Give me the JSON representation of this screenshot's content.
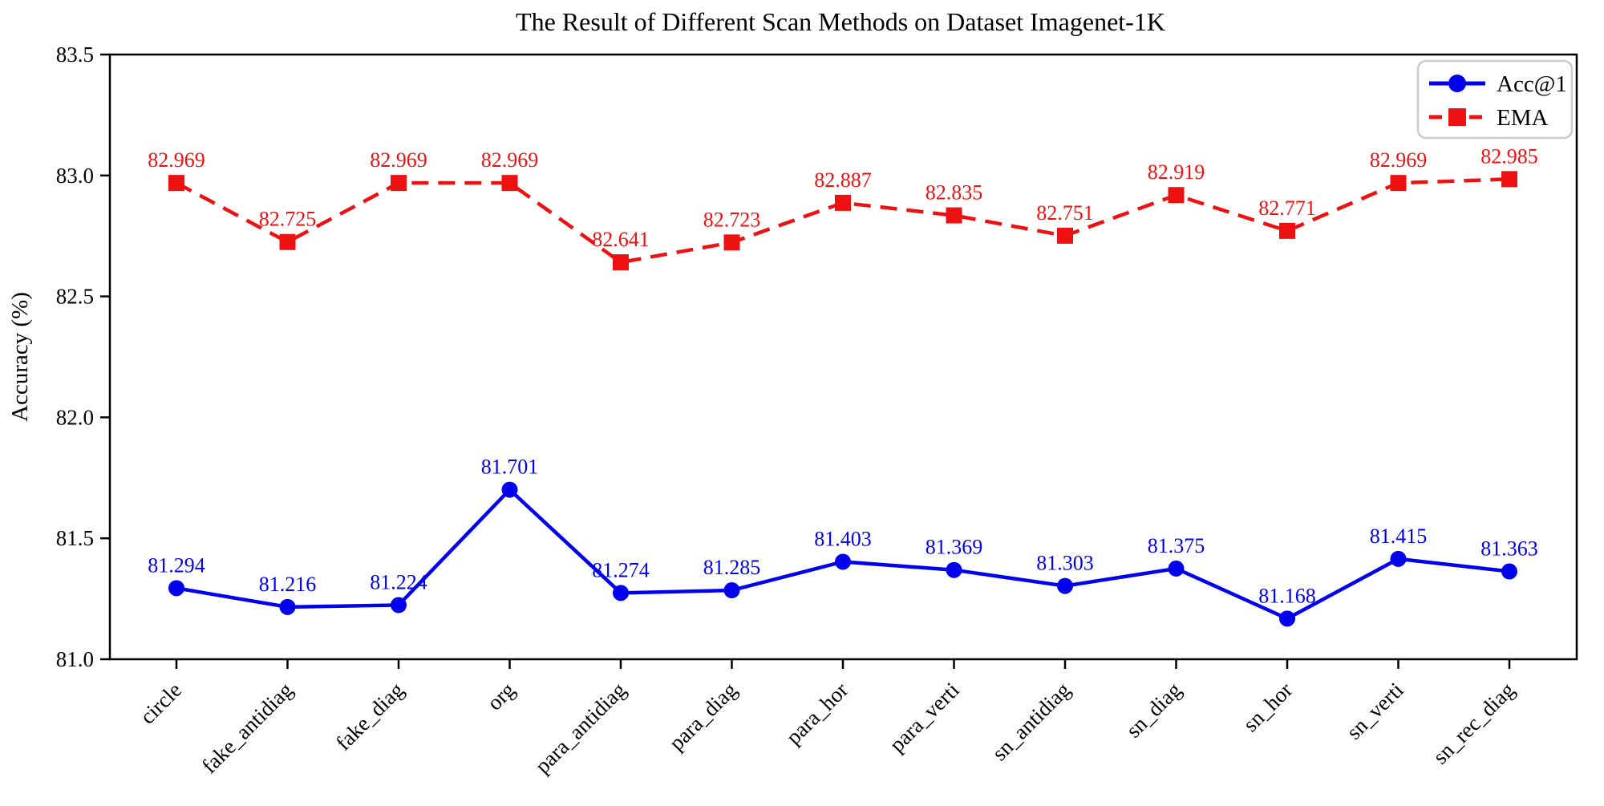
{
  "chart_data": {
    "type": "line",
    "title": "The Result of Different Scan Methods on Dataset Imagenet-1K",
    "xlabel": "",
    "ylabel": "Accuracy (%)",
    "categories": [
      "circle",
      "fake_antidiag",
      "fake_diag",
      "org",
      "para_antidiag",
      "para_diag",
      "para_hor",
      "para_verti",
      "sn_antidiag",
      "sn_diag",
      "sn_hor",
      "sn_verti",
      "sn_rec_diag"
    ],
    "series": [
      {
        "name": "Acc@1",
        "color": "#0000ee",
        "marker": "circle",
        "linestyle": "solid",
        "values": [
          81.294,
          81.216,
          81.224,
          81.701,
          81.274,
          81.285,
          81.403,
          81.369,
          81.303,
          81.375,
          81.168,
          81.415,
          81.363
        ]
      },
      {
        "name": "EMA",
        "color": "#ee1111",
        "marker": "square",
        "linestyle": "dashed",
        "values": [
          82.969,
          82.725,
          82.969,
          82.969,
          82.641,
          82.723,
          82.887,
          82.835,
          82.751,
          82.919,
          82.771,
          82.969,
          82.985
        ]
      }
    ],
    "ylim": [
      81.0,
      83.5
    ],
    "yticks": [
      "81.0",
      "81.5",
      "82.0",
      "82.5",
      "83.0",
      "83.5"
    ],
    "xtick_rotation_deg": 45,
    "value_label_decimals": 3,
    "grid": false,
    "legend_position": "upper right",
    "axis_color": "#000000",
    "legend_border_color": "#cccccc"
  }
}
